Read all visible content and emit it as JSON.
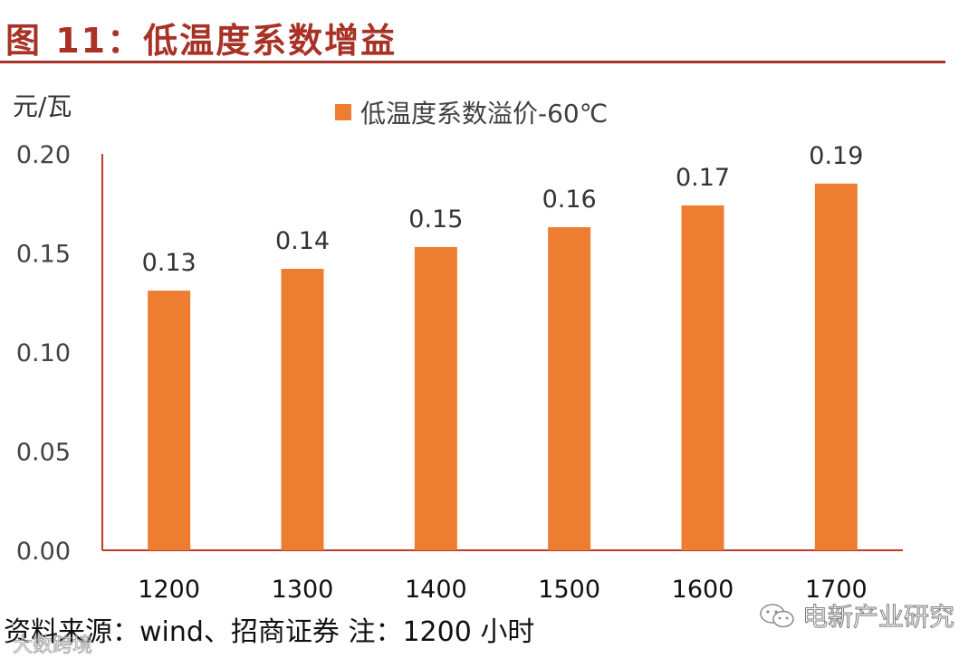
{
  "figure": {
    "title": "图 11：低温度系数增益",
    "unit": "元/瓦",
    "source_note": "资料来源：wind、招商证券 注：1200 小时",
    "watermark": "电新产业研究",
    "watermark_bottom": "大数跨境",
    "accent_color": "#a93226"
  },
  "chart_data": {
    "type": "bar",
    "title": "",
    "xlabel": "",
    "ylabel": "元/瓦",
    "categories": [
      "1200",
      "1300",
      "1400",
      "1500",
      "1600",
      "1700"
    ],
    "series": [
      {
        "name": "低温度系数溢价-60℃",
        "values": [
          0.13,
          0.14,
          0.15,
          0.16,
          0.17,
          0.19
        ],
        "plotted_values": [
          0.131,
          0.142,
          0.153,
          0.163,
          0.174,
          0.185
        ],
        "color": "#ed7d31"
      }
    ],
    "ylim": [
      0,
      0.2
    ],
    "yticks": [
      "0.00",
      "0.05",
      "0.10",
      "0.15",
      "0.20"
    ],
    "ytick_values": [
      0,
      0.05,
      0.1,
      0.15,
      0.2
    ],
    "data_labels": [
      "0.13",
      "0.14",
      "0.15",
      "0.16",
      "0.17",
      "0.19"
    ],
    "grid": false,
    "legend": "top-center",
    "axis_color": "#c0392b"
  }
}
